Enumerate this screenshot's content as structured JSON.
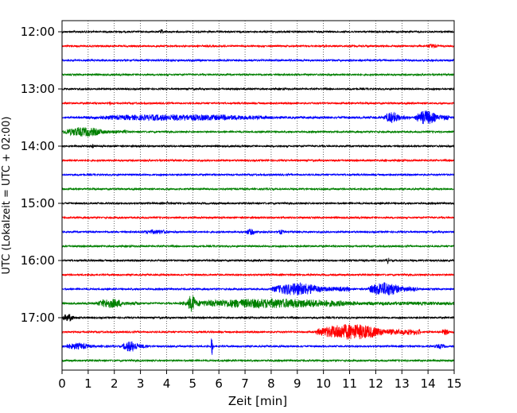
{
  "chart_data": {
    "type": "line",
    "title": "",
    "xlabel": "Zeit  [min]",
    "ylabel": "UTC (Lokalzeit = UTC + 02:00)",
    "xlim": [
      0,
      15
    ],
    "x_ticks": [
      0,
      1,
      2,
      3,
      4,
      5,
      6,
      7,
      8,
      9,
      10,
      11,
      12,
      13,
      14,
      15
    ],
    "x_tick_labels": [
      "0",
      "1",
      "2",
      "3",
      "4",
      "5",
      "6",
      "7",
      "8",
      "9",
      "10",
      "11",
      "12",
      "13",
      "14",
      "15"
    ],
    "y_tick_labels": [
      "12:00",
      "13:00",
      "14:00",
      "15:00",
      "16:00",
      "17:00"
    ],
    "vertical_grid": true,
    "grid_style": "dotted",
    "trace_colors": [
      "#000000",
      "#ff0000",
      "#0000ff",
      "#008000"
    ],
    "traces": [
      {
        "start": "12:00",
        "events": [
          {
            "t": 3.7,
            "dur": 0.3,
            "amp": 3
          }
        ]
      },
      {
        "start": "12:15",
        "events": [
          {
            "t": 13.9,
            "dur": 0.8,
            "amp": 3
          }
        ]
      },
      {
        "start": "12:30",
        "events": []
      },
      {
        "start": "12:45",
        "events": []
      },
      {
        "start": "13:00",
        "events": []
      },
      {
        "start": "13:15",
        "events": [
          {
            "t": 1.8,
            "dur": 0.1,
            "amp": 3
          }
        ]
      },
      {
        "start": "13:30",
        "events": [
          {
            "t": 0.5,
            "dur": 12,
            "amp": 4
          },
          {
            "t": 12.3,
            "dur": 1.0,
            "amp": 7
          },
          {
            "t": 13.5,
            "dur": 1.3,
            "amp": 9
          }
        ]
      },
      {
        "start": "13:45",
        "events": [
          {
            "t": 0.0,
            "dur": 2.5,
            "amp": 6
          }
        ]
      },
      {
        "start": "14:00",
        "events": [
          {
            "t": 1.1,
            "dur": 0.2,
            "amp": 3
          }
        ]
      },
      {
        "start": "14:15",
        "events": [
          {
            "t": 12.3,
            "dur": 0.2,
            "amp": 2
          }
        ]
      },
      {
        "start": "14:30",
        "events": []
      },
      {
        "start": "14:45",
        "events": []
      },
      {
        "start": "15:00",
        "events": [
          {
            "t": 4.0,
            "dur": 0.1,
            "amp": 3
          }
        ]
      },
      {
        "start": "15:15",
        "events": []
      },
      {
        "start": "15:30",
        "events": [
          {
            "t": 3.0,
            "dur": 1.8,
            "amp": 3
          },
          {
            "t": 7.0,
            "dur": 0.6,
            "amp": 4
          },
          {
            "t": 8.2,
            "dur": 0.5,
            "amp": 3
          }
        ]
      },
      {
        "start": "15:45",
        "events": []
      },
      {
        "start": "16:00",
        "events": [
          {
            "t": 12.4,
            "dur": 0.2,
            "amp": 4
          }
        ]
      },
      {
        "start": "16:15",
        "events": []
      },
      {
        "start": "16:30",
        "events": [
          {
            "t": 8.0,
            "dur": 3.0,
            "amp": 8
          },
          {
            "t": 11.7,
            "dur": 1.9,
            "amp": 9
          }
        ]
      },
      {
        "start": "16:45",
        "events": [
          {
            "t": 1.3,
            "dur": 1.7,
            "amp": 6
          },
          {
            "t": 4.5,
            "dur": 10.5,
            "amp": 6
          },
          {
            "t": 4.8,
            "dur": 0.5,
            "amp": 11
          }
        ]
      },
      {
        "start": "17:00",
        "events": [
          {
            "t": 0.0,
            "dur": 0.7,
            "amp": 5
          }
        ]
      },
      {
        "start": "17:15",
        "events": [
          {
            "t": 9.7,
            "dur": 4.0,
            "amp": 10
          },
          {
            "t": 14.5,
            "dur": 0.5,
            "amp": 4
          }
        ]
      },
      {
        "start": "17:30",
        "events": [
          {
            "t": 0.0,
            "dur": 1.8,
            "amp": 4
          },
          {
            "t": 2.3,
            "dur": 1.0,
            "amp": 7
          },
          {
            "t": 5.7,
            "dur": 0.1,
            "amp": 14
          },
          {
            "t": 14.2,
            "dur": 0.8,
            "amp": 3
          }
        ]
      },
      {
        "start": "17:45",
        "events": []
      }
    ]
  }
}
